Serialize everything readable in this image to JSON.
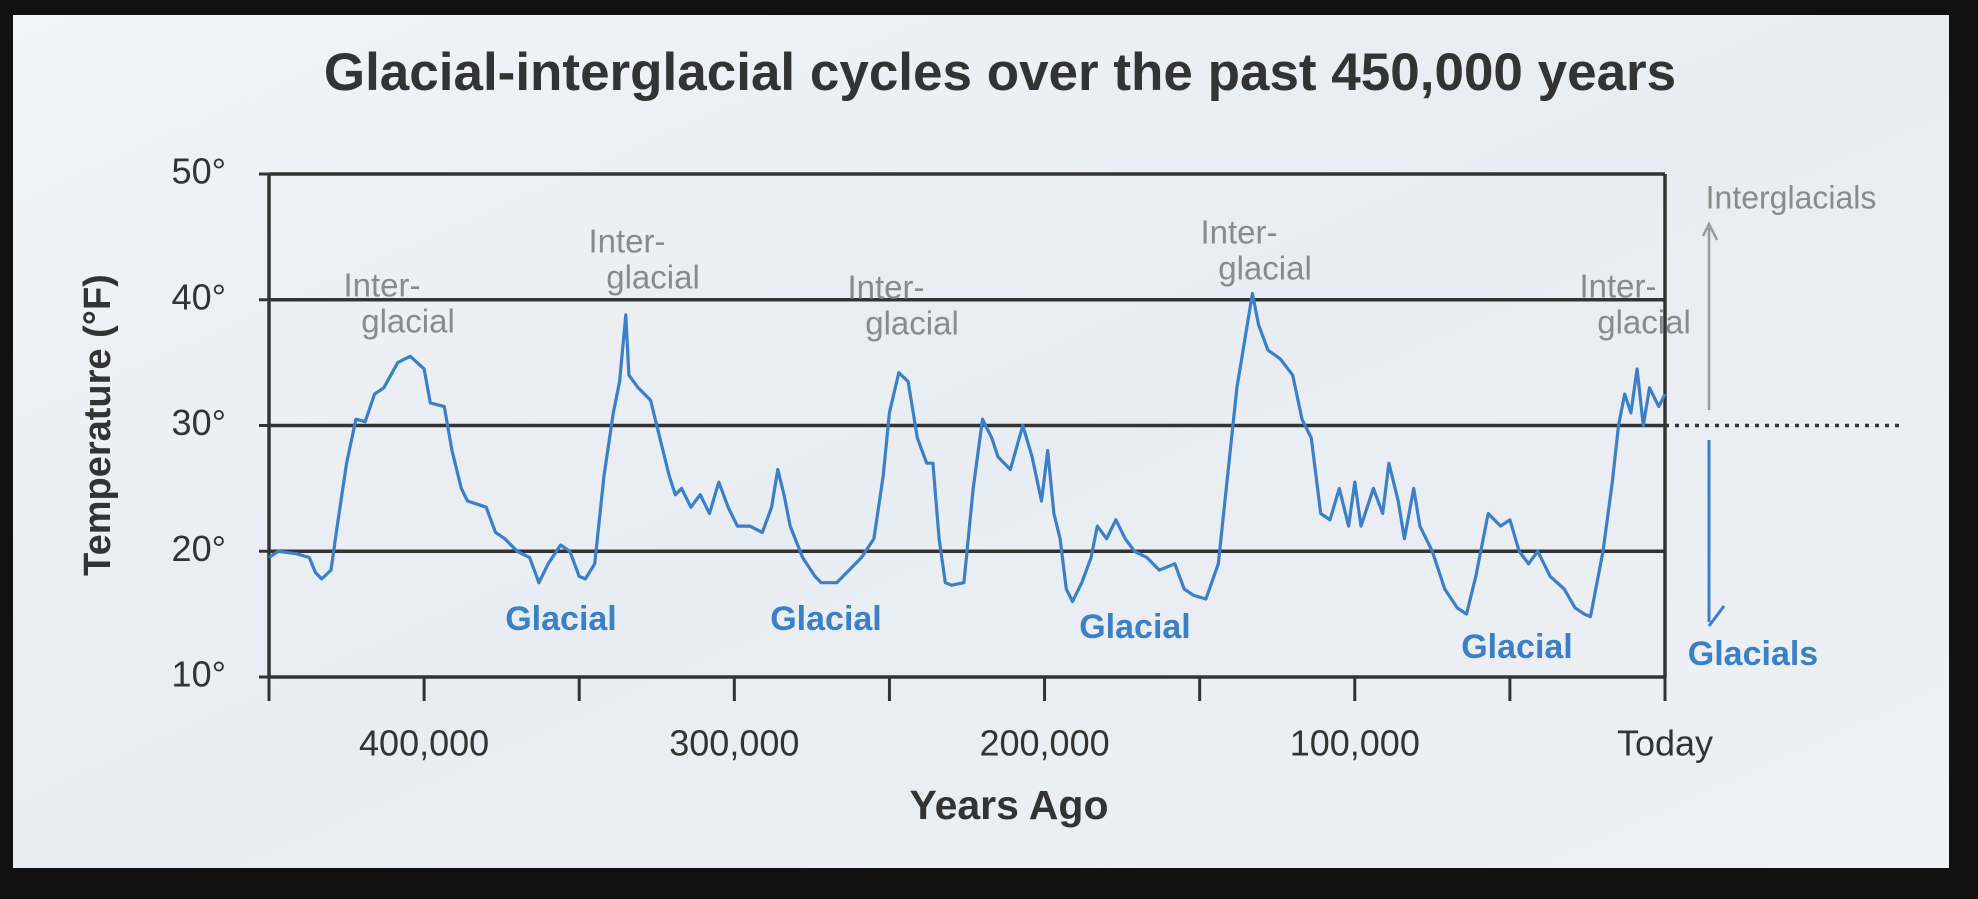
{
  "chart_data": {
    "type": "line",
    "title": "Glacial-interglacial cycles over the past 450,000 years",
    "x_label": "Years Ago",
    "y_label": "Temperature (°F)",
    "xlim": [
      450000,
      0
    ],
    "ylim": [
      10,
      50
    ],
    "xticks": [
      {
        "value": 400000,
        "label": "400,000"
      },
      {
        "value": 300000,
        "label": "300,000"
      },
      {
        "value": 200000,
        "label": "200,000"
      },
      {
        "value": 100000,
        "label": "100,000"
      },
      {
        "value": 0,
        "label": "Today"
      }
    ],
    "x_minor_ticks": [
      450000,
      350000,
      250000,
      150000,
      50000
    ],
    "yticks": [
      {
        "value": 10,
        "label": "10°"
      },
      {
        "value": 20,
        "label": "20°"
      },
      {
        "value": 30,
        "label": "30°"
      },
      {
        "value": 40,
        "label": "40°"
      },
      {
        "value": 50,
        "label": "50°"
      }
    ],
    "grid": true,
    "reference_line": 30,
    "series": [
      {
        "name": "Temperature",
        "color": "#3a7fc8",
        "x": [
          450000,
          447000,
          441000,
          437000,
          435000,
          433000,
          430000,
          428000,
          425000,
          422000,
          419000,
          416000,
          413000,
          408500,
          404500,
          400000,
          398000,
          393500,
          391000,
          388000,
          386000,
          380000,
          377000,
          374000,
          370000,
          366000,
          363000,
          360000,
          356000,
          353000,
          350000,
          348000,
          345000,
          342000,
          339000,
          337000,
          335000,
          334000,
          331000,
          327000,
          324000,
          321000,
          319000,
          317000,
          314000,
          311000,
          308000,
          305000,
          302000,
          299000,
          295000,
          291000,
          288000,
          286000,
          284000,
          282000,
          278000,
          274000,
          272000,
          267000,
          263000,
          259000,
          255000,
          252000,
          250000,
          247000,
          244000,
          241000,
          238000,
          236000,
          234000,
          232000,
          230000,
          226000,
          223000,
          220000,
          217000,
          215000,
          211000,
          207000,
          204000,
          201000,
          199000,
          197000,
          195000,
          193000,
          191000,
          188000,
          185000,
          183000,
          180000,
          177000,
          174000,
          171000,
          167000,
          163000,
          158000,
          155000,
          152000,
          148000,
          144000,
          141000,
          138000,
          135000,
          133000,
          131000,
          128000,
          124000,
          120000,
          117000,
          114000,
          111000,
          108000,
          105000,
          102000,
          100000,
          98000,
          94000,
          91000,
          89000,
          86000,
          84000,
          81000,
          79000,
          75000,
          71000,
          67000,
          64000,
          61000,
          57000,
          53000,
          50000,
          47000,
          44000,
          41000,
          37000,
          32500,
          29000,
          26000,
          24000,
          20000,
          17000,
          15000,
          13000,
          11000,
          9000,
          7000,
          5000,
          2000,
          0
        ],
        "values": [
          19.5,
          20,
          19.8,
          19.5,
          18.3,
          17.8,
          18.5,
          22,
          27,
          30.5,
          30.3,
          32.5,
          33,
          35,
          35.5,
          34.5,
          31.8,
          31.5,
          28,
          25,
          24,
          23.5,
          21.5,
          21,
          20,
          19.5,
          17.5,
          19,
          20.5,
          20,
          18,
          17.8,
          19,
          26,
          31,
          33.5,
          38.8,
          34,
          33,
          32,
          29,
          26,
          24.5,
          25,
          23.5,
          24.5,
          23,
          25.5,
          23.5,
          22,
          22,
          21.5,
          23.5,
          26.5,
          24.5,
          22,
          19.5,
          18,
          17.5,
          17.5,
          18.5,
          19.5,
          21,
          26,
          31,
          34.2,
          33.5,
          29,
          27,
          27,
          21,
          17.5,
          17.3,
          17.5,
          25,
          30.5,
          29,
          27.5,
          26.5,
          30,
          27.5,
          24,
          28,
          23,
          21,
          17,
          16,
          17.5,
          19.5,
          22,
          21,
          22.5,
          21,
          20,
          19.5,
          18.5,
          19,
          17,
          16.5,
          16.2,
          19,
          26,
          33,
          37.5,
          40.5,
          38,
          36,
          35.3,
          34,
          30.5,
          29,
          23,
          22.5,
          25,
          22,
          25.5,
          22,
          25,
          23,
          27,
          24,
          21,
          25,
          22,
          20,
          17,
          15.5,
          15,
          18,
          23,
          22,
          22.5,
          20,
          19,
          20,
          18,
          17,
          15.5,
          15,
          14.8,
          20,
          25.5,
          30,
          32.5,
          31,
          34.5,
          30,
          33,
          31.5,
          32.5
        ]
      }
    ],
    "interglacial_labels": [
      [
        "Inter-",
        "glacial"
      ],
      [
        "Inter-",
        "glacial"
      ],
      [
        "Inter-",
        "glacial"
      ],
      [
        "Inter-",
        "glacial"
      ],
      [
        "Inter-",
        "glacial"
      ]
    ],
    "glacial_labels": [
      "Glacial",
      "Glacial",
      "Glacial",
      "Glacial"
    ],
    "glacial_color": "#3a7fc8",
    "interglacial_color": "#8a8a8a",
    "side_labels": {
      "up": "Interglacials",
      "down": "Glacials"
    }
  }
}
